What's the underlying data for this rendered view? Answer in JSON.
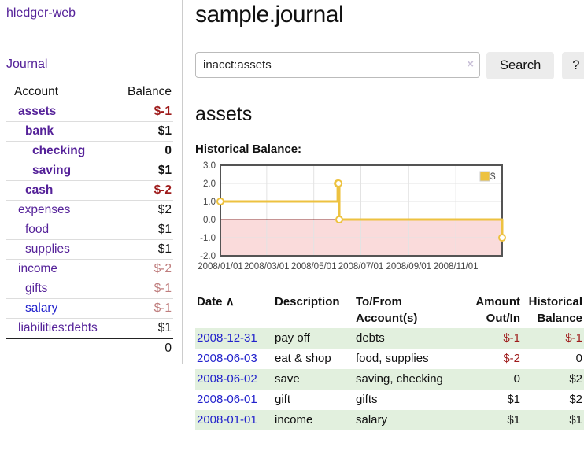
{
  "sidebar": {
    "brand": "hledger-web",
    "nav_journal": "Journal",
    "accounts_table": {
      "headers": {
        "account": "Account",
        "balance": "Balance"
      },
      "rows": [
        {
          "account": "assets",
          "balance": "$-1",
          "depth": 1,
          "bold": true,
          "balance_tone": "negative-strong",
          "link_color": "purple"
        },
        {
          "account": "bank",
          "balance": "$1",
          "depth": 2,
          "bold": true,
          "balance_tone": "normal",
          "link_color": "purple"
        },
        {
          "account": "checking",
          "balance": "0",
          "depth": 3,
          "bold": true,
          "balance_tone": "normal",
          "link_color": "purple"
        },
        {
          "account": "saving",
          "balance": "$1",
          "depth": 3,
          "bold": true,
          "balance_tone": "normal",
          "link_color": "purple"
        },
        {
          "account": "cash",
          "balance": "$-2",
          "depth": 2,
          "bold": true,
          "balance_tone": "negative-strong",
          "link_color": "purple"
        },
        {
          "account": "expenses",
          "balance": "$2",
          "depth": 1,
          "bold": false,
          "balance_tone": "normal",
          "link_color": "purple"
        },
        {
          "account": "food",
          "balance": "$1",
          "depth": 2,
          "bold": false,
          "balance_tone": "normal",
          "link_color": "purple"
        },
        {
          "account": "supplies",
          "balance": "$1",
          "depth": 2,
          "bold": false,
          "balance_tone": "normal",
          "link_color": "purple"
        },
        {
          "account": "income",
          "balance": "$-2",
          "depth": 1,
          "bold": false,
          "balance_tone": "negative-soft",
          "link_color": "purple"
        },
        {
          "account": "gifts",
          "balance": "$-1",
          "depth": 2,
          "bold": false,
          "balance_tone": "negative-soft",
          "link_color": "purple"
        },
        {
          "account": "salary",
          "balance": "$-1",
          "depth": 2,
          "bold": false,
          "balance_tone": "negative-soft",
          "link_color": "blue"
        },
        {
          "account": "liabilities:debts",
          "balance": "$1",
          "depth": 1,
          "bold": false,
          "balance_tone": "normal",
          "link_color": "purple"
        }
      ],
      "total": "0"
    }
  },
  "header": {
    "title": "sample.journal"
  },
  "search": {
    "value": "inacct:assets",
    "clear_icon": "×",
    "search_button": "Search",
    "help_button": "?"
  },
  "account_page": {
    "title": "assets",
    "chart_label": "Historical Balance:"
  },
  "chart_data": {
    "type": "line",
    "style": "step",
    "title": "Historical Balance",
    "x_range": [
      "2008-01-01",
      "2008-12-31"
    ],
    "ylim": [
      -2,
      3
    ],
    "yticks": [
      3.0,
      2.0,
      1.0,
      0.0,
      -1.0,
      -2.0
    ],
    "xticks": [
      "2008/01/01",
      "2008/03/01",
      "2008/05/01",
      "2008/07/01",
      "2008/09/01",
      "2008/11/01"
    ],
    "grid": true,
    "legend_position": "top-right",
    "series": [
      {
        "name": "$",
        "points": [
          [
            "2008-01-01",
            1
          ],
          [
            "2008-06-01",
            2
          ],
          [
            "2008-06-02",
            2
          ],
          [
            "2008-06-03",
            0
          ],
          [
            "2008-12-31",
            -1
          ]
        ]
      }
    ],
    "colors": {
      "series": "#edc240",
      "marker_fill": "#ffffff",
      "negative_region": "#fadbdb",
      "zero_line": "#8c2828",
      "grid": "#e3e3e3",
      "border": "#545454",
      "tick_text": "#444444"
    }
  },
  "register": {
    "headers": {
      "date": "Date",
      "sort_indicator": "∧",
      "description": "Description",
      "accounts_line1": "To/From",
      "accounts_line2": "Account(s)",
      "amount_line1": "Amount",
      "amount_line2": "Out/In",
      "balance_line1": "Historical",
      "balance_line2": "Balance"
    },
    "rows": [
      {
        "date": "2008-12-31",
        "description": "pay off",
        "accounts": "debts",
        "amount": "$-1",
        "amount_tone": "negative",
        "balance": "$-1",
        "balance_tone": "negative"
      },
      {
        "date": "2008-06-03",
        "description": "eat & shop",
        "accounts": "food, supplies",
        "amount": "$-2",
        "amount_tone": "negative",
        "balance": "0",
        "balance_tone": "normal"
      },
      {
        "date": "2008-06-02",
        "description": "save",
        "accounts": "saving, checking",
        "amount": "0",
        "amount_tone": "normal",
        "balance": "$2",
        "balance_tone": "normal"
      },
      {
        "date": "2008-06-01",
        "description": "gift",
        "accounts": "gifts",
        "amount": "$1",
        "amount_tone": "normal",
        "balance": "$2",
        "balance_tone": "normal"
      },
      {
        "date": "2008-01-01",
        "description": "income",
        "accounts": "salary",
        "amount": "$1",
        "amount_tone": "normal",
        "balance": "$1",
        "balance_tone": "normal"
      }
    ]
  },
  "colors": {
    "link_purple": "#552299",
    "link_blue": "#2222cc",
    "negative_strong": "#9e1b1b",
    "negative_soft": "#bf7d7d",
    "row_green": "#e2f0de",
    "button_bg": "#ececec"
  }
}
